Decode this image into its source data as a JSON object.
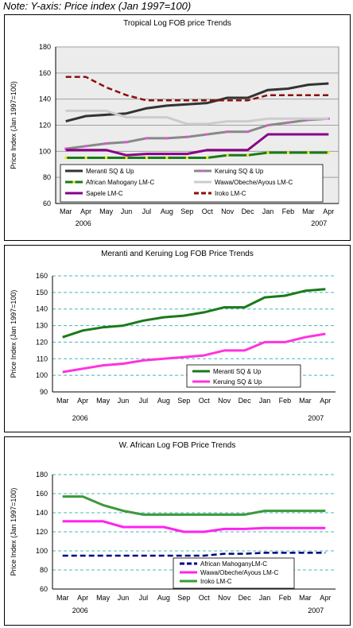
{
  "note": "Note: Y-axis: Price index (Jan 1997=100)",
  "chart_data": [
    {
      "type": "line",
      "title": "Tropical Log FOB price Trends",
      "ylabel": "Price Index (Jan 1997=100)",
      "xlabel": "",
      "categories": [
        "Mar",
        "Apr",
        "May",
        "Jun",
        "Jul",
        "Aug",
        "Sep",
        "Oct",
        "Nov",
        "Dec",
        "Jan",
        "Feb",
        "Mar",
        "Apr"
      ],
      "year_labels": [
        "2006",
        "2007"
      ],
      "ylim": [
        60,
        180
      ],
      "yticks": [
        60,
        80,
        100,
        120,
        140,
        160,
        180
      ],
      "grid": "horizontal gray",
      "plot_bg": "#ececec",
      "legend": "bottom",
      "series": [
        {
          "name": "Meranti SQ & Up",
          "color": "#333333",
          "dash": "solid",
          "values": [
            123,
            127,
            128,
            129,
            133,
            135,
            136,
            137,
            141,
            141,
            147,
            148,
            151,
            152
          ]
        },
        {
          "name": "Keruing SQ & Up",
          "color": "#888888",
          "marker": "#ff44ee",
          "dash": "solid",
          "values": [
            102,
            104,
            106,
            107,
            110,
            110,
            111,
            113,
            115,
            115,
            120,
            122,
            124,
            125
          ]
        },
        {
          "name": "African Mahogany LM-C",
          "color": "#1a7a1a",
          "marker": "#eeee00",
          "dash": "solid",
          "values": [
            95,
            95,
            95,
            95,
            95,
            95,
            95,
            95,
            97,
            97,
            99,
            99,
            99,
            99
          ]
        },
        {
          "name": "Wawa/Obeche/Ayous LM-C",
          "color": "#cccccc",
          "dash": "solid",
          "values": [
            131,
            131,
            131,
            126,
            126,
            126,
            121,
            121,
            123,
            123,
            125,
            125,
            125,
            125
          ]
        },
        {
          "name": "Sapele LM-C",
          "color": "#880088",
          "dash": "solid",
          "values": [
            101,
            101,
            101,
            97,
            98,
            98,
            98,
            101,
            101,
            101,
            113,
            113,
            113,
            113
          ]
        },
        {
          "name": "Iroko LM-C",
          "color": "#8b1010",
          "dash": "dashed",
          "values": [
            157,
            157,
            149,
            143,
            139,
            139,
            139,
            139,
            139,
            139,
            143,
            143,
            143,
            143
          ]
        }
      ]
    },
    {
      "type": "line",
      "title": "Meranti and Keruing Log FOB Price Trends",
      "ylabel": "Price Index (Jan 1997=100)",
      "xlabel": "",
      "categories": [
        "Mar",
        "Apr",
        "May",
        "Jun",
        "Jul",
        "Aug",
        "Sep",
        "Oct",
        "Nov",
        "Dec",
        "Jan",
        "Feb",
        "Mar",
        "Apr"
      ],
      "year_labels": [
        "2006",
        "2007"
      ],
      "ylim": [
        90,
        160
      ],
      "yticks": [
        90,
        100,
        110,
        120,
        130,
        140,
        150,
        160
      ],
      "grid": "horizontal dashed teal",
      "plot_bg": "#ffffff",
      "legend": "bottom-right",
      "series": [
        {
          "name": "Meranti SQ & Up",
          "color": "#1a7a1a",
          "dash": "solid",
          "values": [
            123,
            127,
            129,
            130,
            133,
            135,
            136,
            138,
            141,
            141,
            147,
            148,
            151,
            152
          ]
        },
        {
          "name": "Keruing SQ & Up",
          "color": "#ff33dd",
          "dash": "solid",
          "values": [
            102,
            104,
            106,
            107,
            109,
            110,
            111,
            112,
            115,
            115,
            120,
            120,
            123,
            125
          ]
        }
      ]
    },
    {
      "type": "line",
      "title": "W. African Log FOB Price Trends",
      "ylabel": "Price Index (Jan 1997=100)",
      "xlabel": "",
      "categories": [
        "Mar",
        "Apr",
        "May",
        "Jun",
        "Jul",
        "Aug",
        "Sep",
        "Oct",
        "Nov",
        "Dec",
        "Jan",
        "Feb",
        "Mar",
        "Apr"
      ],
      "year_labels": [
        "2006",
        "2007"
      ],
      "ylim": [
        60,
        180
      ],
      "yticks": [
        60,
        80,
        100,
        120,
        140,
        160,
        180
      ],
      "grid": "horizontal dashed teal",
      "plot_bg": "#ffffff",
      "legend": "bottom-right",
      "series": [
        {
          "name": "African MahoganyLM-C",
          "color": "#000080",
          "dash": "dashed",
          "values": [
            95,
            95,
            95,
            95,
            95,
            95,
            95,
            95,
            97,
            97,
            98,
            98,
            98,
            98
          ]
        },
        {
          "name": "Wawa/Obeche/Ayous LM-C",
          "color": "#ff22ee",
          "dash": "solid",
          "values": [
            131,
            131,
            131,
            125,
            125,
            125,
            120,
            120,
            123,
            123,
            124,
            124,
            124,
            124
          ]
        },
        {
          "name": "Iroko LM-C",
          "color": "#3a9a3a",
          "dash": "solid",
          "values": [
            157,
            157,
            148,
            142,
            138,
            138,
            138,
            138,
            138,
            138,
            142,
            142,
            142,
            142
          ]
        }
      ]
    }
  ]
}
